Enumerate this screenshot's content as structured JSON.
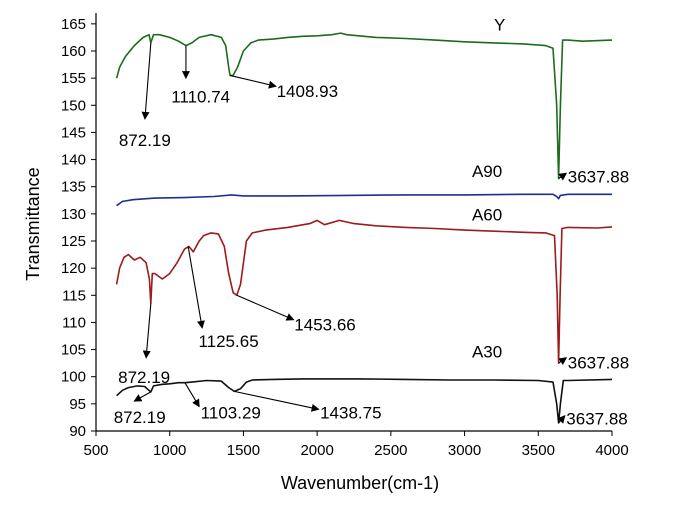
{
  "chart_data": {
    "type": "line",
    "title": "",
    "xlabel": "Wavenumber(cm-1)",
    "ylabel": "Transmittance",
    "xlim": [
      500,
      4000
    ],
    "ylim": [
      90,
      167
    ],
    "x_ticks": [
      500,
      1000,
      1500,
      2000,
      2500,
      3000,
      3500,
      4000
    ],
    "y_ticks": [
      90,
      95,
      100,
      105,
      110,
      115,
      120,
      125,
      130,
      135,
      140,
      145,
      150,
      155,
      160,
      165
    ],
    "grid": false,
    "series": [
      {
        "name": "Y",
        "color": "#1e6b1e",
        "points": [
          [
            640,
            155
          ],
          [
            660,
            157
          ],
          [
            700,
            159
          ],
          [
            760,
            161
          ],
          [
            820,
            162.5
          ],
          [
            860,
            163
          ],
          [
            872,
            161.5
          ],
          [
            890,
            163
          ],
          [
            930,
            163
          ],
          [
            1000,
            162.5
          ],
          [
            1060,
            161.8
          ],
          [
            1110,
            161
          ],
          [
            1150,
            161.5
          ],
          [
            1200,
            162.5
          ],
          [
            1280,
            163
          ],
          [
            1350,
            162.5
          ],
          [
            1380,
            161
          ],
          [
            1400,
            157
          ],
          [
            1409,
            155.5
          ],
          [
            1430,
            155.5
          ],
          [
            1460,
            157
          ],
          [
            1500,
            160
          ],
          [
            1550,
            161.5
          ],
          [
            1600,
            162
          ],
          [
            1700,
            162.2
          ],
          [
            1800,
            162.5
          ],
          [
            1900,
            162.7
          ],
          [
            2000,
            162.8
          ],
          [
            2100,
            163
          ],
          [
            2160,
            163.3
          ],
          [
            2200,
            163
          ],
          [
            2400,
            162.5
          ],
          [
            2600,
            162.3
          ],
          [
            2800,
            162
          ],
          [
            3000,
            161.7
          ],
          [
            3200,
            161.5
          ],
          [
            3400,
            161.3
          ],
          [
            3550,
            161
          ],
          [
            3600,
            160.5
          ],
          [
            3625,
            150
          ],
          [
            3638,
            136.5
          ],
          [
            3650,
            150
          ],
          [
            3665,
            162
          ],
          [
            3700,
            162
          ],
          [
            3800,
            161.8
          ],
          [
            4000,
            162
          ]
        ]
      },
      {
        "name": "A90",
        "color": "#1f2f8f",
        "points": [
          [
            640,
            131.5
          ],
          [
            680,
            132.3
          ],
          [
            750,
            132.6
          ],
          [
            900,
            132.9
          ],
          [
            1100,
            133
          ],
          [
            1300,
            133.2
          ],
          [
            1420,
            133.5
          ],
          [
            1500,
            133.3
          ],
          [
            1800,
            133.3
          ],
          [
            2200,
            133.4
          ],
          [
            2600,
            133.5
          ],
          [
            3000,
            133.5
          ],
          [
            3400,
            133.6
          ],
          [
            3600,
            133.6
          ],
          [
            3625,
            133.2
          ],
          [
            3638,
            132.8
          ],
          [
            3650,
            133.4
          ],
          [
            3700,
            133.6
          ],
          [
            4000,
            133.6
          ]
        ]
      },
      {
        "name": "A60",
        "color": "#9c1b1b",
        "points": [
          [
            640,
            117
          ],
          [
            660,
            120
          ],
          [
            690,
            122
          ],
          [
            720,
            122.5
          ],
          [
            760,
            121.5
          ],
          [
            800,
            122
          ],
          [
            840,
            121
          ],
          [
            862,
            118
          ],
          [
            872,
            113.5
          ],
          [
            882,
            119
          ],
          [
            900,
            119
          ],
          [
            950,
            118
          ],
          [
            1000,
            119
          ],
          [
            1050,
            121
          ],
          [
            1100,
            123.5
          ],
          [
            1130,
            124
          ],
          [
            1160,
            123
          ],
          [
            1200,
            125
          ],
          [
            1230,
            126
          ],
          [
            1280,
            126.5
          ],
          [
            1330,
            126.3
          ],
          [
            1370,
            124
          ],
          [
            1400,
            119
          ],
          [
            1430,
            115.5
          ],
          [
            1455,
            115
          ],
          [
            1480,
            117
          ],
          [
            1520,
            125
          ],
          [
            1560,
            126.5
          ],
          [
            1650,
            127
          ],
          [
            1800,
            127.5
          ],
          [
            1950,
            128.2
          ],
          [
            2000,
            128.8
          ],
          [
            2050,
            128
          ],
          [
            2150,
            128.8
          ],
          [
            2250,
            128.2
          ],
          [
            2400,
            127.8
          ],
          [
            2600,
            127.5
          ],
          [
            2800,
            127.3
          ],
          [
            3000,
            127
          ],
          [
            3200,
            126.8
          ],
          [
            3400,
            126.6
          ],
          [
            3550,
            126.5
          ],
          [
            3610,
            126
          ],
          [
            3628,
            115
          ],
          [
            3638,
            102.5
          ],
          [
            3648,
            115
          ],
          [
            3660,
            127.3
          ],
          [
            3700,
            127.5
          ],
          [
            3900,
            127.4
          ],
          [
            4000,
            127.6
          ]
        ]
      },
      {
        "name": "A30",
        "color": "#111111",
        "points": [
          [
            640,
            96.5
          ],
          [
            680,
            97.5
          ],
          [
            720,
            98
          ],
          [
            780,
            98.3
          ],
          [
            830,
            98.2
          ],
          [
            850,
            97.7
          ],
          [
            872,
            97.2
          ],
          [
            890,
            98.3
          ],
          [
            950,
            98.6
          ],
          [
            1000,
            98.7
          ],
          [
            1060,
            98.9
          ],
          [
            1103,
            98.9
          ],
          [
            1150,
            99
          ],
          [
            1250,
            99.3
          ],
          [
            1350,
            99.2
          ],
          [
            1400,
            98
          ],
          [
            1438,
            97.3
          ],
          [
            1480,
            97.8
          ],
          [
            1520,
            99
          ],
          [
            1560,
            99.4
          ],
          [
            1700,
            99.5
          ],
          [
            1900,
            99.6
          ],
          [
            2100,
            99.6
          ],
          [
            2300,
            99.6
          ],
          [
            2600,
            99.5
          ],
          [
            2900,
            99.4
          ],
          [
            3200,
            99.4
          ],
          [
            3500,
            99.3
          ],
          [
            3600,
            99
          ],
          [
            3625,
            95
          ],
          [
            3638,
            91.5
          ],
          [
            3650,
            95
          ],
          [
            3670,
            99.3
          ],
          [
            3700,
            99.3
          ],
          [
            4000,
            99.5
          ]
        ]
      }
    ],
    "series_labels": [
      {
        "series": "Y",
        "text": "Y",
        "x": 3200,
        "y": 163.8
      },
      {
        "series": "A90",
        "text": "A90",
        "x": 3050,
        "y": 136.8
      },
      {
        "series": "A60",
        "text": "A60",
        "x": 3050,
        "y": 128.8
      },
      {
        "series": "A30",
        "text": "A30",
        "x": 3050,
        "y": 103.5
      }
    ],
    "annotations": [
      {
        "text": "872.19",
        "arrow_from": [
          872,
          161.5
        ],
        "arrow_to": [
          832,
          147.5
        ],
        "text_x": 655,
        "text_y": 142.5,
        "anchor": "start"
      },
      {
        "text": "1110.74",
        "arrow_from": [
          1110,
          161
        ],
        "arrow_to": [
          1110,
          155
        ],
        "text_x": 1010,
        "text_y": 150.5,
        "anchor": "start"
      },
      {
        "text": "1408.93",
        "arrow_from": [
          1409,
          155.5
        ],
        "arrow_to": [
          1720,
          153.5
        ],
        "text_x": 1725,
        "text_y": 151.5,
        "anchor": "start"
      },
      {
        "text": "3637.88",
        "arrow_from": [
          3638,
          136.5
        ],
        "arrow_to": [
          3690,
          137.5
        ],
        "text_x": 3700,
        "text_y": 135.8,
        "anchor": "start"
      },
      {
        "text": "872.19",
        "arrow_from": [
          872,
          113.5
        ],
        "arrow_to": [
          840,
          103.5
        ],
        "text_x": 650,
        "text_y": 98.8,
        "anchor": "start"
      },
      {
        "text": "1125.65",
        "arrow_from": [
          1125,
          124
        ],
        "arrow_to": [
          1220,
          109
        ],
        "text_x": 1195,
        "text_y": 105.5,
        "anchor": "start"
      },
      {
        "text": "1453.66",
        "arrow_from": [
          1455,
          115
        ],
        "arrow_to": [
          1840,
          110.5
        ],
        "text_x": 1845,
        "text_y": 108.5,
        "anchor": "start"
      },
      {
        "text": "3637.88",
        "arrow_from": [
          3638,
          102.5
        ],
        "arrow_to": [
          3690,
          103.5
        ],
        "text_x": 3700,
        "text_y": 101.5,
        "anchor": "start"
      },
      {
        "text": "872.19",
        "arrow_from": [
          872,
          97.2
        ],
        "arrow_to": [
          760,
          95.5
        ],
        "text_x": 620,
        "text_y": 91.5,
        "anchor": "start"
      },
      {
        "text": "1103.29",
        "arrow_from": [
          1103,
          98.9
        ],
        "arrow_to": [
          1200,
          94.5
        ],
        "text_x": 1210,
        "text_y": 92.3,
        "anchor": "start"
      },
      {
        "text": "1438.75",
        "arrow_from": [
          1438,
          97.3
        ],
        "arrow_to": [
          2010,
          94
        ],
        "text_x": 2020,
        "text_y": 92.3,
        "anchor": "start"
      },
      {
        "text": "3637.88",
        "arrow_from": [
          3638,
          91.5
        ],
        "arrow_to": [
          3680,
          92.8
        ],
        "text_x": 3690,
        "text_y": 91.2,
        "anchor": "start"
      }
    ]
  }
}
